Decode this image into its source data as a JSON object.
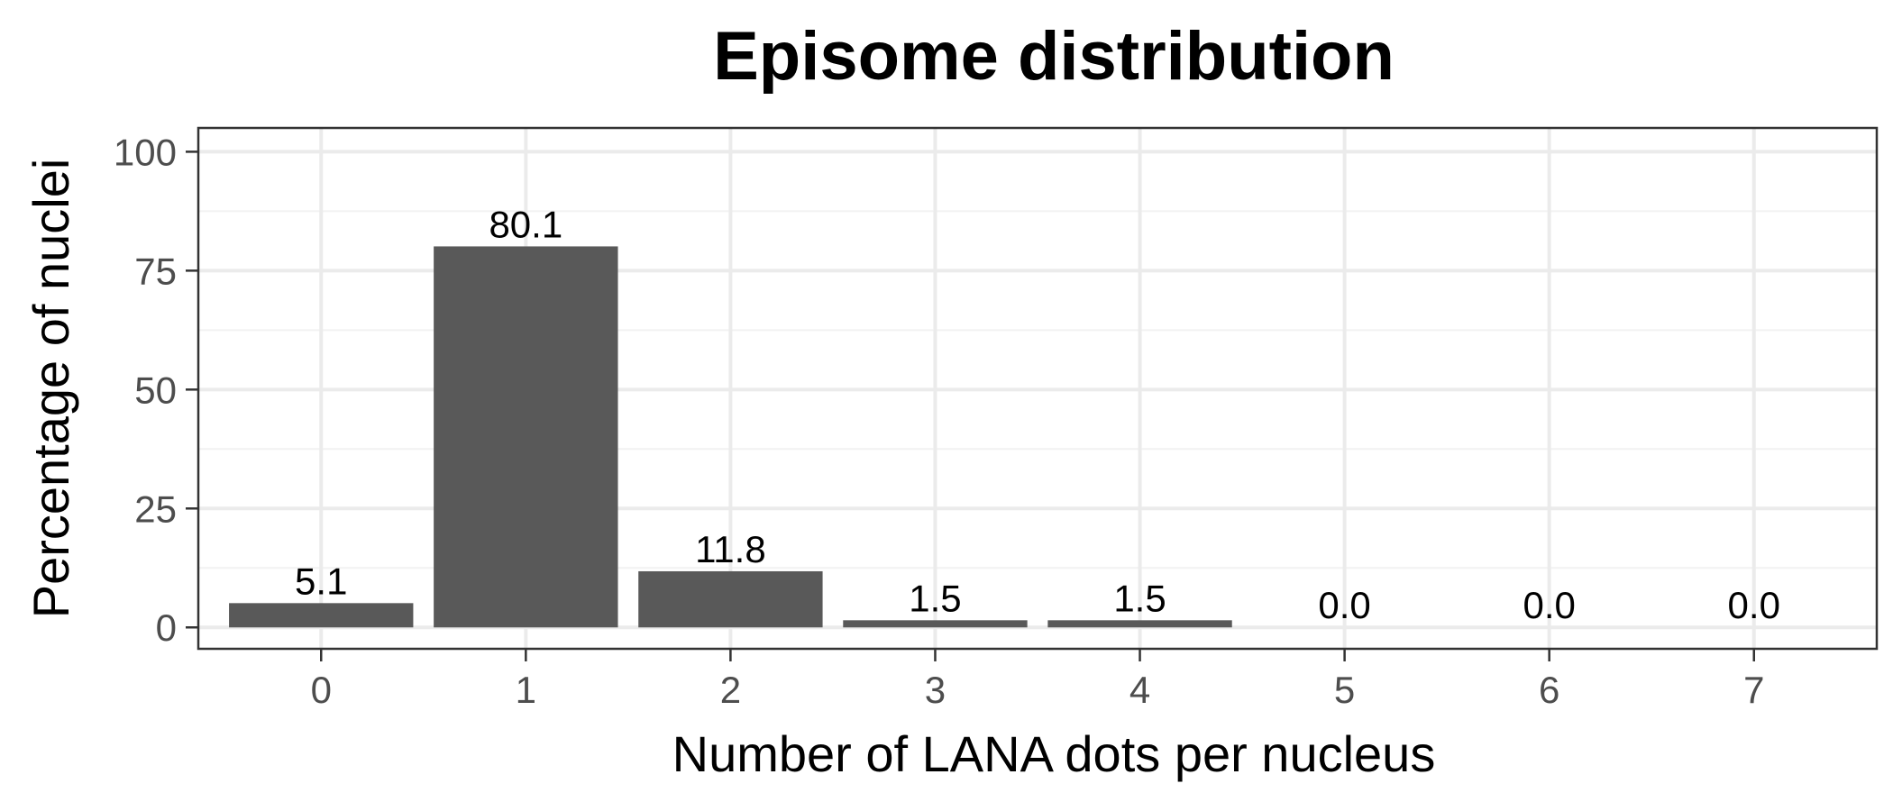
{
  "chart_data": {
    "type": "bar",
    "title": "Episome distribution",
    "xlabel": "Number of LANA dots per nucleus",
    "ylabel": "Percentage of nuclei",
    "categories": [
      "0",
      "1",
      "2",
      "3",
      "4",
      "5",
      "6",
      "7"
    ],
    "values": [
      5.1,
      80.1,
      11.8,
      1.5,
      1.5,
      0.0,
      0.0,
      0.0
    ],
    "data_labels": [
      "5.1",
      "80.1",
      "11.8",
      "1.5",
      "1.5",
      "0.0",
      "0.0",
      "0.0"
    ],
    "yticks": [
      0,
      25,
      50,
      75,
      100
    ],
    "ylim": [
      -4.5,
      105
    ],
    "grid": true,
    "legend": "none",
    "bar_color": "#595959"
  }
}
